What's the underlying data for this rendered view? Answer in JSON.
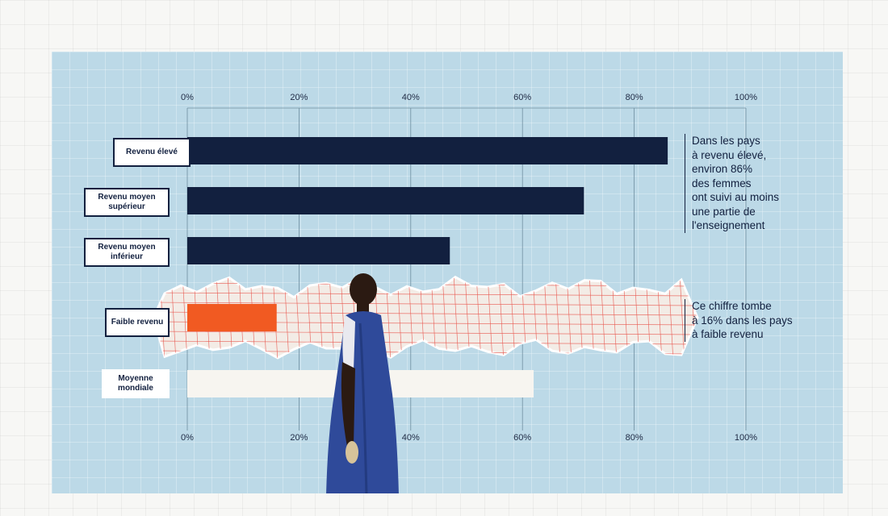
{
  "chart_data": {
    "type": "bar",
    "orientation": "horizontal",
    "categories": [
      "Revenu élevé",
      "Revenu moyen supérieur",
      "Revenu moyen inférieur",
      "Faible revenu",
      "Moyenne mondiale"
    ],
    "values": [
      86,
      71,
      47,
      16,
      62
    ],
    "xlim": [
      0,
      100
    ],
    "x_ticks": [
      "0%",
      "20%",
      "40%",
      "60%",
      "80%",
      "100%"
    ],
    "grid": true,
    "annotations": [
      {
        "text": "Dans les pays\nà revenu élevé,\nenviron 86%\ndes femmes\nont suivi au moins\nune partie de\nl'enseignement",
        "category": "Revenu élevé"
      },
      {
        "text": "Ce chiffre tombe\nà 16% dans les pays\nà faible revenu",
        "category": "Faible revenu"
      }
    ]
  },
  "colors": {
    "panel_background": "#bcd9e7",
    "bar_dark": "#12203f",
    "bar_highlight": "#f15a22",
    "bar_average": "#f7f5f0",
    "torn_paper": "#f3ece6",
    "grid_red": "#e8534a"
  }
}
